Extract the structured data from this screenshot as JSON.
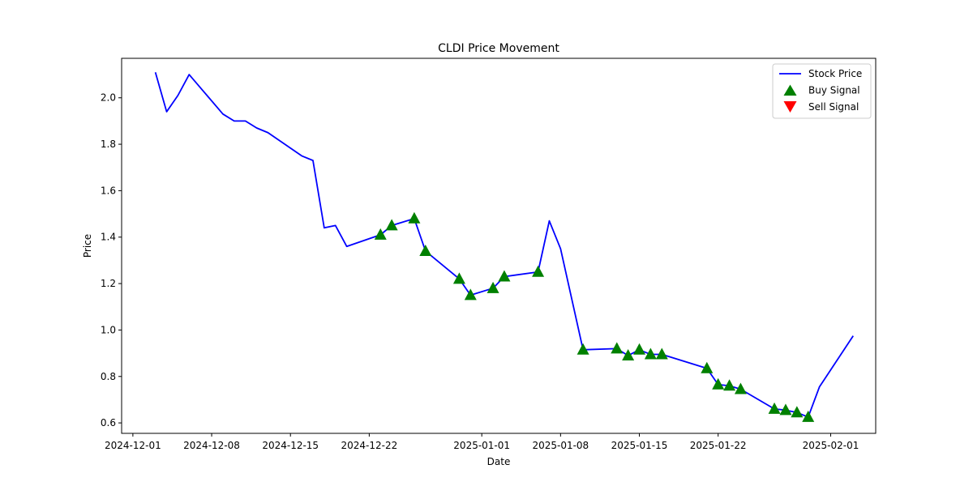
{
  "chart_data": {
    "type": "line",
    "title": "CLDI Price Movement",
    "xlabel": "Date",
    "ylabel": "Price",
    "xlim": [
      "2024-11-30",
      "2025-02-05"
    ],
    "ylim": [
      0.555,
      2.17
    ],
    "x_ticks": [
      "2024-12-01",
      "2024-12-08",
      "2024-12-15",
      "2024-12-22",
      "2025-01-01",
      "2025-01-08",
      "2025-01-15",
      "2025-01-22",
      "2025-02-01"
    ],
    "y_ticks": [
      0.6,
      0.8,
      1.0,
      1.2,
      1.4,
      1.6,
      1.8,
      2.0
    ],
    "y_tick_labels": [
      "0.6",
      "0.8",
      "1.0",
      "1.2",
      "1.4",
      "1.6",
      "1.8",
      "2.0"
    ],
    "grid": false,
    "legend_position": "top-right",
    "series": [
      {
        "name": "Stock Price",
        "color": "#0000ff",
        "points": [
          [
            "2024-12-03",
            2.11
          ],
          [
            "2024-12-04",
            1.94
          ],
          [
            "2024-12-05",
            2.01
          ],
          [
            "2024-12-06",
            2.1
          ],
          [
            "2024-12-09",
            1.93
          ],
          [
            "2024-12-10",
            1.9
          ],
          [
            "2024-12-11",
            1.9
          ],
          [
            "2024-12-12",
            1.87
          ],
          [
            "2024-12-13",
            1.85
          ],
          [
            "2024-12-16",
            1.75
          ],
          [
            "2024-12-17",
            1.73
          ],
          [
            "2024-12-18",
            1.44
          ],
          [
            "2024-12-19",
            1.45
          ],
          [
            "2024-12-20",
            1.36
          ],
          [
            "2024-12-23",
            1.41
          ],
          [
            "2024-12-24",
            1.45
          ],
          [
            "2024-12-26",
            1.48
          ],
          [
            "2024-12-27",
            1.34
          ],
          [
            "2024-12-30",
            1.22
          ],
          [
            "2024-12-31",
            1.15
          ],
          [
            "2025-01-02",
            1.18
          ],
          [
            "2025-01-03",
            1.23
          ],
          [
            "2025-01-06",
            1.25
          ],
          [
            "2025-01-07",
            1.47
          ],
          [
            "2025-01-08",
            1.35
          ],
          [
            "2025-01-10",
            0.915
          ],
          [
            "2025-01-13",
            0.92
          ],
          [
            "2025-01-14",
            0.89
          ],
          [
            "2025-01-15",
            0.915
          ],
          [
            "2025-01-16",
            0.895
          ],
          [
            "2025-01-17",
            0.895
          ],
          [
            "2025-01-21",
            0.835
          ],
          [
            "2025-01-22",
            0.765
          ],
          [
            "2025-01-23",
            0.76
          ],
          [
            "2025-01-24",
            0.745
          ],
          [
            "2025-01-27",
            0.66
          ],
          [
            "2025-01-28",
            0.655
          ],
          [
            "2025-01-29",
            0.645
          ],
          [
            "2025-01-30",
            0.625
          ],
          [
            "2025-01-31",
            0.755
          ],
          [
            "2025-02-03",
            0.975
          ]
        ]
      },
      {
        "name": "Buy Signal",
        "color": "#008000",
        "marker": "triangle-up",
        "points": [
          [
            "2024-12-23",
            1.41
          ],
          [
            "2024-12-24",
            1.45
          ],
          [
            "2024-12-26",
            1.48
          ],
          [
            "2024-12-27",
            1.34
          ],
          [
            "2024-12-30",
            1.22
          ],
          [
            "2024-12-31",
            1.15
          ],
          [
            "2025-01-02",
            1.18
          ],
          [
            "2025-01-03",
            1.23
          ],
          [
            "2025-01-06",
            1.25
          ],
          [
            "2025-01-10",
            0.915
          ],
          [
            "2025-01-13",
            0.92
          ],
          [
            "2025-01-14",
            0.89
          ],
          [
            "2025-01-15",
            0.915
          ],
          [
            "2025-01-16",
            0.895
          ],
          [
            "2025-01-17",
            0.895
          ],
          [
            "2025-01-21",
            0.835
          ],
          [
            "2025-01-22",
            0.765
          ],
          [
            "2025-01-23",
            0.76
          ],
          [
            "2025-01-24",
            0.745
          ],
          [
            "2025-01-27",
            0.66
          ],
          [
            "2025-01-28",
            0.655
          ],
          [
            "2025-01-29",
            0.645
          ],
          [
            "2025-01-30",
            0.625
          ]
        ]
      },
      {
        "name": "Sell Signal",
        "color": "#ff0000",
        "marker": "triangle-down",
        "points": []
      }
    ]
  }
}
